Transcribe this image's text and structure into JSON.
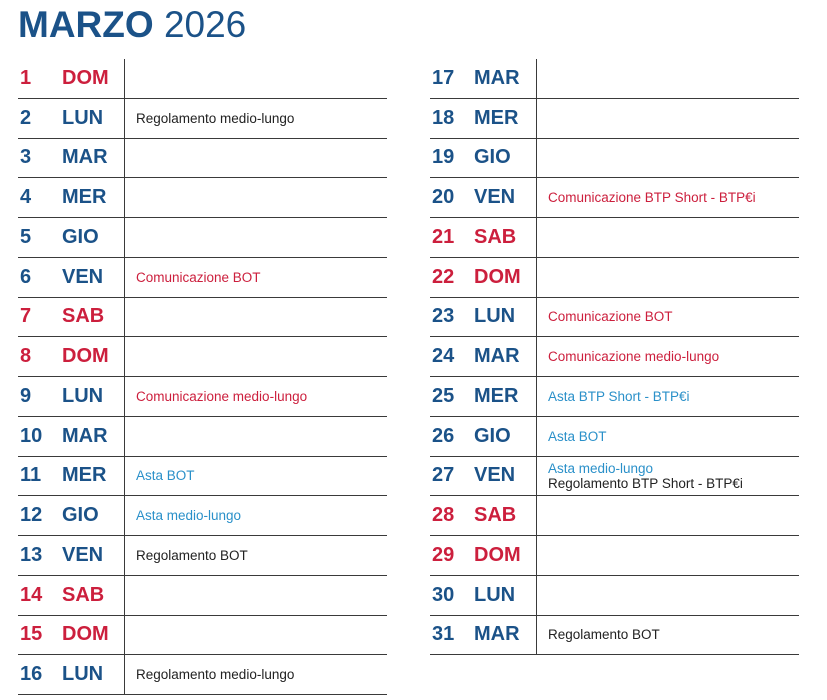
{
  "title": {
    "month": "MARZO",
    "year": "2026"
  },
  "colors": {
    "weekday": "#1b5288",
    "weekend": "#cc1f3d",
    "note_black": "#222222",
    "note_red": "#cc1f3d",
    "note_cyan": "#2a90c9"
  },
  "columns": [
    [
      {
        "num": "1",
        "day": "DOM",
        "weekend": true,
        "notes": []
      },
      {
        "num": "2",
        "day": "LUN",
        "weekend": false,
        "notes": [
          {
            "text": "Regolamento medio-lungo",
            "color": "black"
          }
        ]
      },
      {
        "num": "3",
        "day": "MAR",
        "weekend": false,
        "notes": []
      },
      {
        "num": "4",
        "day": "MER",
        "weekend": false,
        "notes": []
      },
      {
        "num": "5",
        "day": "GIO",
        "weekend": false,
        "notes": []
      },
      {
        "num": "6",
        "day": "VEN",
        "weekend": false,
        "notes": [
          {
            "text": "Comunicazione BOT",
            "color": "red"
          }
        ]
      },
      {
        "num": "7",
        "day": "SAB",
        "weekend": true,
        "notes": []
      },
      {
        "num": "8",
        "day": "DOM",
        "weekend": true,
        "notes": []
      },
      {
        "num": "9",
        "day": "LUN",
        "weekend": false,
        "notes": [
          {
            "text": "Comunicazione medio-lungo",
            "color": "red"
          }
        ]
      },
      {
        "num": "10",
        "day": "MAR",
        "weekend": false,
        "notes": []
      },
      {
        "num": "11",
        "day": "MER",
        "weekend": false,
        "notes": [
          {
            "text": "Asta BOT",
            "color": "cyan"
          }
        ]
      },
      {
        "num": "12",
        "day": "GIO",
        "weekend": false,
        "notes": [
          {
            "text": "Asta medio-lungo",
            "color": "cyan"
          }
        ]
      },
      {
        "num": "13",
        "day": "VEN",
        "weekend": false,
        "notes": [
          {
            "text": "Regolamento BOT",
            "color": "black"
          }
        ]
      },
      {
        "num": "14",
        "day": "SAB",
        "weekend": true,
        "notes": []
      },
      {
        "num": "15",
        "day": "DOM",
        "weekend": true,
        "notes": []
      },
      {
        "num": "16",
        "day": "LUN",
        "weekend": false,
        "notes": [
          {
            "text": "Regolamento medio-lungo",
            "color": "black"
          }
        ]
      }
    ],
    [
      {
        "num": "17",
        "day": "MAR",
        "weekend": false,
        "notes": []
      },
      {
        "num": "18",
        "day": "MER",
        "weekend": false,
        "notes": []
      },
      {
        "num": "19",
        "day": "GIO",
        "weekend": false,
        "notes": []
      },
      {
        "num": "20",
        "day": "VEN",
        "weekend": false,
        "notes": [
          {
            "text": "Comunicazione BTP Short - BTP€i",
            "color": "red"
          }
        ]
      },
      {
        "num": "21",
        "day": "SAB",
        "weekend": true,
        "notes": []
      },
      {
        "num": "22",
        "day": "DOM",
        "weekend": true,
        "notes": []
      },
      {
        "num": "23",
        "day": "LUN",
        "weekend": false,
        "notes": [
          {
            "text": "Comunicazione BOT",
            "color": "red"
          }
        ]
      },
      {
        "num": "24",
        "day": "MAR",
        "weekend": false,
        "notes": [
          {
            "text": "Comunicazione medio-lungo",
            "color": "red"
          }
        ]
      },
      {
        "num": "25",
        "day": "MER",
        "weekend": false,
        "notes": [
          {
            "text": "Asta BTP Short - BTP€i",
            "color": "cyan"
          }
        ]
      },
      {
        "num": "26",
        "day": "GIO",
        "weekend": false,
        "notes": [
          {
            "text": "Asta BOT",
            "color": "cyan"
          }
        ]
      },
      {
        "num": "27",
        "day": "VEN",
        "weekend": false,
        "notes": [
          {
            "text": "Asta medio-lungo",
            "color": "cyan"
          },
          {
            "text": "Regolamento BTP Short - BTP€i",
            "color": "black"
          }
        ]
      },
      {
        "num": "28",
        "day": "SAB",
        "weekend": true,
        "notes": []
      },
      {
        "num": "29",
        "day": "DOM",
        "weekend": true,
        "notes": []
      },
      {
        "num": "30",
        "day": "LUN",
        "weekend": false,
        "notes": []
      },
      {
        "num": "31",
        "day": "MAR",
        "weekend": false,
        "notes": [
          {
            "text": "Regolamento BOT",
            "color": "black"
          }
        ]
      }
    ]
  ]
}
